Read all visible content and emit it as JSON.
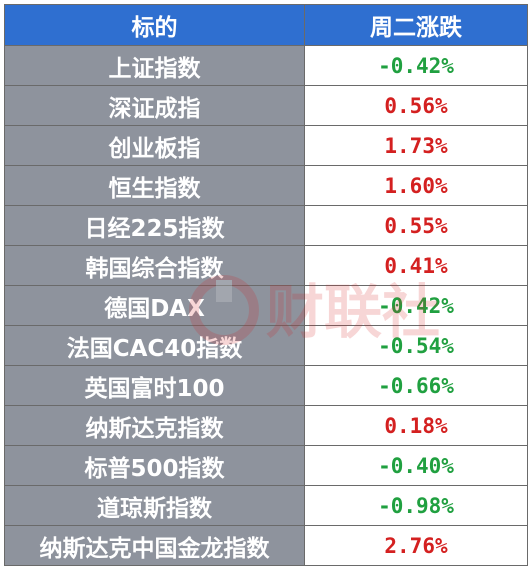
{
  "header": {
    "col_name": "标的",
    "col_change": "周二涨跌"
  },
  "colors": {
    "header_bg": "#2f6fd0",
    "name_bg": "#8e939d",
    "up": "#d42020",
    "down": "#20a040"
  },
  "rows": [
    {
      "name": "上证指数",
      "change": "-0.42%",
      "dir": "down"
    },
    {
      "name": "深证成指",
      "change": "0.56%",
      "dir": "up"
    },
    {
      "name": "创业板指",
      "change": "1.73%",
      "dir": "up"
    },
    {
      "name": "恒生指数",
      "change": "1.60%",
      "dir": "up"
    },
    {
      "name": "日经225指数",
      "change": "0.55%",
      "dir": "up"
    },
    {
      "name": "韩国综合指数",
      "change": "0.41%",
      "dir": "up"
    },
    {
      "name": "德国DAX",
      "change": "-0.42%",
      "dir": "down"
    },
    {
      "name": "法国CAC40指数",
      "change": "-0.54%",
      "dir": "down"
    },
    {
      "name": "英国富时100",
      "change": "-0.66%",
      "dir": "down"
    },
    {
      "name": "纳斯达克指数",
      "change": "0.18%",
      "dir": "up"
    },
    {
      "name": "标普500指数",
      "change": "-0.40%",
      "dir": "down"
    },
    {
      "name": "道琼斯指数",
      "change": "-0.98%",
      "dir": "down"
    },
    {
      "name": "纳斯达克中国金龙指数",
      "change": "2.76%",
      "dir": "up"
    }
  ],
  "watermark": {
    "text": "财联社",
    "icon": "cls-logo-icon"
  }
}
